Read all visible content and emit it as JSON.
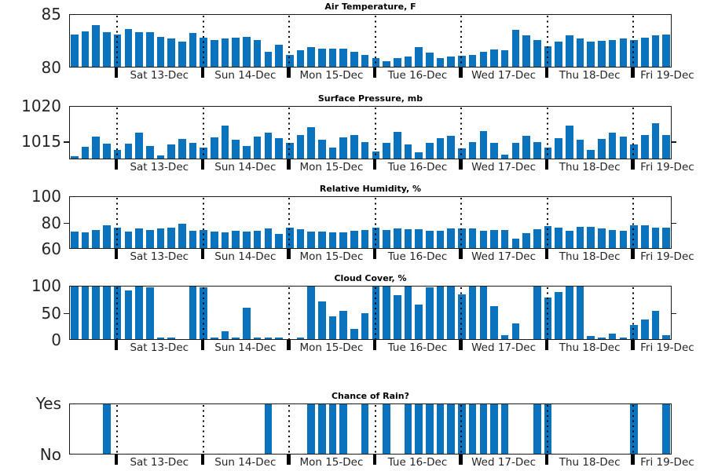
{
  "figure": {
    "bar_color": "#0b72bd",
    "axis_color": "#1a1a1a",
    "n_points": 56,
    "points_per_day": 8,
    "day_divider_indices": [
      4,
      12,
      20,
      28,
      36,
      44,
      52
    ],
    "day_labels": [
      "Sat 13-Dec",
      "Sun 14-Dec",
      "Mon 15-Dec",
      "Tue 16-Dec",
      "Wed 17-Dec",
      "Thu 18-Dec",
      "Fri 19-Dec"
    ]
  },
  "chart_data": [
    {
      "id": "air-temperature",
      "type": "bar",
      "title": "Air Temperature, F",
      "ylim": [
        80,
        85
      ],
      "ytick_vals": [
        80,
        85
      ],
      "ytick_labels": [
        "80",
        "85"
      ],
      "outer_ticks": [],
      "values": [
        83.1,
        83.4,
        84.0,
        83.3,
        83.1,
        83.6,
        83.3,
        83.3,
        82.9,
        82.7,
        82.4,
        83.2,
        82.8,
        82.6,
        82.7,
        82.8,
        82.9,
        82.6,
        81.5,
        82.1,
        81.2,
        81.6,
        81.9,
        81.8,
        81.8,
        81.8,
        81.5,
        81.2,
        80.9,
        80.6,
        80.9,
        81.0,
        81.9,
        81.4,
        80.9,
        81.0,
        81.1,
        81.2,
        81.5,
        81.7,
        81.6,
        83.5,
        83.0,
        82.6,
        82.0,
        82.4,
        83.0,
        82.7,
        82.4,
        82.5,
        82.6,
        82.7,
        82.6,
        82.8,
        83.0,
        83.1
      ]
    },
    {
      "id": "surface-pressure",
      "type": "bar",
      "title": "Surface Pressure, mb",
      "ylim": [
        1012.5,
        1020
      ],
      "ytick_vals": [
        1015,
        1020
      ],
      "ytick_labels": [
        "1015",
        "1020"
      ],
      "outer_ticks": [
        1015
      ],
      "values": [
        1012.9,
        1014.3,
        1015.7,
        1014.7,
        1013.8,
        1014.7,
        1016.3,
        1014.4,
        1013.0,
        1014.6,
        1015.4,
        1014.8,
        1014.2,
        1015.6,
        1017.2,
        1015.3,
        1014.4,
        1015.7,
        1016.2,
        1015.5,
        1014.8,
        1015.9,
        1017.0,
        1015.3,
        1014.2,
        1015.6,
        1015.9,
        1014.9,
        1013.6,
        1014.8,
        1016.4,
        1014.6,
        1013.5,
        1014.8,
        1015.5,
        1015.8,
        1014.0,
        1014.9,
        1016.5,
        1014.8,
        1013.2,
        1014.8,
        1015.8,
        1014.9,
        1014.1,
        1015.5,
        1017.2,
        1015.3,
        1013.8,
        1015.4,
        1016.2,
        1015.7,
        1014.6,
        1015.9,
        1017.6,
        1015.9
      ]
    },
    {
      "id": "relative-humidity",
      "type": "bar",
      "title": "Relative Humidity, %",
      "ylim": [
        60,
        100
      ],
      "ytick_vals": [
        60,
        80,
        100
      ],
      "ytick_labels": [
        "60",
        "80",
        "100"
      ],
      "outer_ticks": [
        80
      ],
      "values": [
        73,
        72.5,
        74.5,
        78,
        76,
        73,
        75.5,
        74.5,
        75.5,
        76,
        79,
        73.5,
        74.5,
        73,
        72.5,
        73.5,
        73,
        73.5,
        75.5,
        71.5,
        76,
        75,
        73,
        73,
        72.5,
        72.5,
        74,
        74.5,
        76,
        74.5,
        75.5,
        75,
        75,
        73.5,
        74,
        75.5,
        75.5,
        75.5,
        73.5,
        74.5,
        74.5,
        67.5,
        72,
        75,
        77.5,
        76,
        73.5,
        76.5,
        77,
        75.5,
        74.5,
        74,
        78,
        78,
        76,
        76
      ]
    },
    {
      "id": "cloud-cover",
      "type": "bar",
      "title": "Cloud Cover, %",
      "ylim": [
        0,
        100
      ],
      "ytick_vals": [
        0,
        50,
        100
      ],
      "ytick_labels": [
        "0",
        "50",
        "100"
      ],
      "outer_ticks": [
        50
      ],
      "values": [
        100,
        100,
        100,
        100,
        100,
        91,
        100,
        97,
        4,
        5,
        2,
        100,
        97,
        5,
        16,
        5,
        60,
        5,
        5,
        5,
        2,
        5,
        100,
        71,
        44,
        54,
        20,
        50,
        100,
        100,
        83,
        100,
        65,
        97,
        100,
        100,
        84,
        100,
        100,
        62,
        8,
        30,
        2,
        98,
        78,
        88,
        100,
        100,
        7,
        4,
        11,
        4,
        28,
        38,
        53,
        8
      ]
    },
    {
      "id": "chance-of-rain",
      "type": "bar",
      "title": "Chance of Rain?",
      "ylim": [
        0,
        1
      ],
      "ytick_vals": [
        0,
        1
      ],
      "ytick_labels": [
        "No",
        "Yes"
      ],
      "outer_ticks": [],
      "values": [
        0,
        0,
        0,
        1,
        0,
        0,
        0,
        0,
        0,
        0,
        0,
        0,
        0,
        0,
        0,
        0,
        0,
        0,
        1,
        0,
        0,
        0,
        1,
        1,
        1,
        1,
        0,
        1,
        0,
        1,
        0,
        1,
        1,
        1,
        1,
        1,
        1,
        1,
        1,
        1,
        1,
        0,
        0,
        1,
        1,
        0,
        0,
        0,
        0,
        0,
        0,
        0,
        1,
        0,
        0,
        1
      ]
    }
  ]
}
